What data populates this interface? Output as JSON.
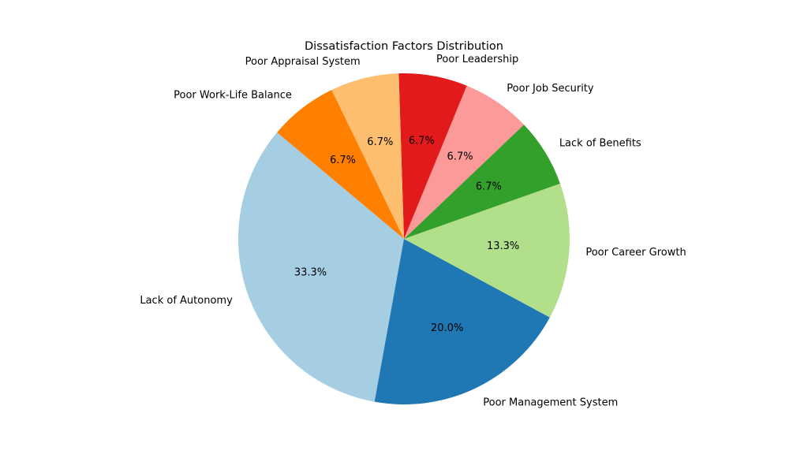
{
  "chart_data": {
    "type": "pie",
    "title": "Dissatisfaction Factors Distribution",
    "start_angle_deg": 140,
    "direction": "counterclockwise",
    "slices": [
      {
        "label": "Lack of Autonomy",
        "value": 33.3,
        "pct_label": "33.3%",
        "color": "#a6cee3"
      },
      {
        "label": "Poor Management System",
        "value": 20.0,
        "pct_label": "20.0%",
        "color": "#1f78b4"
      },
      {
        "label": "Poor Career Growth",
        "value": 13.3,
        "pct_label": "13.3%",
        "color": "#b2df8a"
      },
      {
        "label": "Lack of Benefits",
        "value": 6.7,
        "pct_label": "6.7%",
        "color": "#33a02c"
      },
      {
        "label": "Poor Job Security",
        "value": 6.7,
        "pct_label": "6.7%",
        "color": "#fb9a99"
      },
      {
        "label": "Poor Leadership",
        "value": 6.7,
        "pct_label": "6.7%",
        "color": "#e31a1c"
      },
      {
        "label": "Poor Appraisal System",
        "value": 6.7,
        "pct_label": "6.7%",
        "color": "#fdbf6f"
      },
      {
        "label": "Poor Work-Life Balance",
        "value": 6.7,
        "pct_label": "6.7%",
        "color": "#ff7f00"
      }
    ]
  }
}
